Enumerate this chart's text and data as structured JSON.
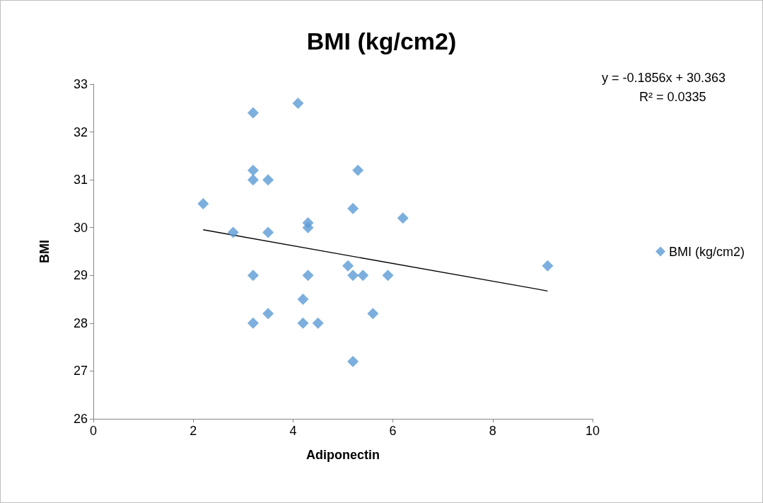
{
  "chart_data": {
    "type": "scatter",
    "title": "BMI (kg/cm2)",
    "xlabel": "Adiponectin",
    "ylabel": "BMI",
    "annotations": [
      "y = -0.1856x + 30.363",
      "R² = 0.0335"
    ],
    "series": [
      {
        "name": "BMI (kg/cm2)",
        "color": "#5b9bd5",
        "x": [
          2.2,
          2.8,
          3.2,
          3.2,
          3.2,
          3.2,
          3.2,
          3.5,
          3.5,
          3.5,
          4.1,
          4.2,
          4.2,
          4.3,
          4.3,
          4.3,
          4.5,
          5.1,
          5.2,
          5.2,
          5.2,
          5.3,
          5.4,
          5.6,
          5.9,
          6.2,
          9.1
        ],
        "values": [
          30.5,
          29.9,
          32.4,
          31.2,
          31.0,
          29.0,
          28.0,
          31.0,
          29.9,
          28.2,
          32.6,
          28.5,
          28.0,
          30.1,
          30.0,
          29.0,
          28.0,
          29.2,
          30.4,
          29.0,
          27.2,
          31.2,
          29.0,
          28.2,
          29.0,
          30.2,
          29.2
        ]
      },
      {
        "type": "line",
        "color": "#000000",
        "x": [
          2.2,
          9.1
        ],
        "values": [
          29.955,
          28.674
        ],
        "marker": "none"
      }
    ],
    "xlim": [
      0,
      10
    ],
    "xticks": [
      0,
      2,
      4,
      6,
      8,
      10
    ],
    "ylim": [
      26,
      33
    ],
    "yticks": [
      26,
      27,
      28,
      29,
      30,
      31,
      32,
      33
    ],
    "grid": false,
    "legend": "right",
    "marker": "diamond"
  }
}
